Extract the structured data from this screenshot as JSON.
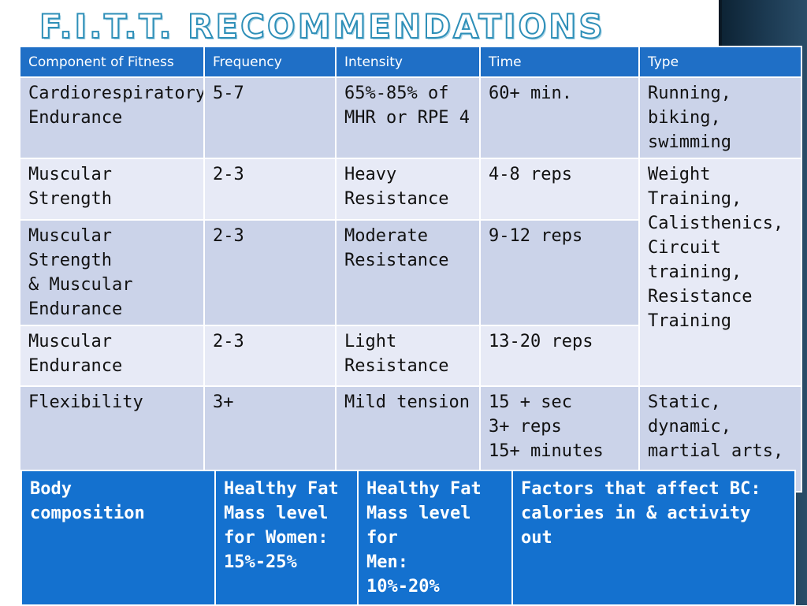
{
  "title": "F.I.T.T. RECOMMENDATIONS",
  "table": {
    "headers": [
      "Component of Fitness",
      "Frequency",
      "Intensity",
      "Time",
      "Type"
    ],
    "rows": [
      {
        "component": "Cardiorespiratory\nEndurance",
        "frequency": "5-7",
        "intensity": "65%-85% of\nMHR or RPE 4",
        "time": "60+ min.",
        "type": "Running,\nbiking,\nswimming"
      },
      {
        "component": "Muscular Strength",
        "frequency": "2-3",
        "intensity": "Heavy\nResistance",
        "time": "4-8 reps",
        "type": "Weight\nTraining,\nCalisthenics,\nCircuit training,\nResistance\nTraining"
      },
      {
        "component": "Muscular Strength\n& Muscular\nEndurance",
        "frequency": "2-3",
        "intensity": "Moderate\nResistance",
        "time": "9-12 reps"
      },
      {
        "component": "Muscular\nEndurance",
        "frequency": "2-3",
        "intensity": "Light\nResistance",
        "time": "13-20 reps"
      },
      {
        "component": "Flexibility",
        "frequency": "3+",
        "intensity": "Mild tension",
        "time": "15 + sec\n3+ reps\n15+ minutes",
        "type": "Static,\ndynamic,\nmartial arts,\nyoga"
      }
    ]
  },
  "body_composition": {
    "label": "Body\ncomposition",
    "women": "Healthy Fat\nMass level\nfor Women:\n15%-25%",
    "men": "Healthy Fat\nMass level for\nMen:\n10%-20%",
    "factors": "Factors that affect BC:\ncalories in & activity out"
  },
  "colors": {
    "header_blue": "#1f6fc6",
    "row_dark": "#cbd3e9",
    "row_light": "#e7eaf6",
    "bc_blue": "#1471cf",
    "title_stroke": "#2e8fb8"
  }
}
